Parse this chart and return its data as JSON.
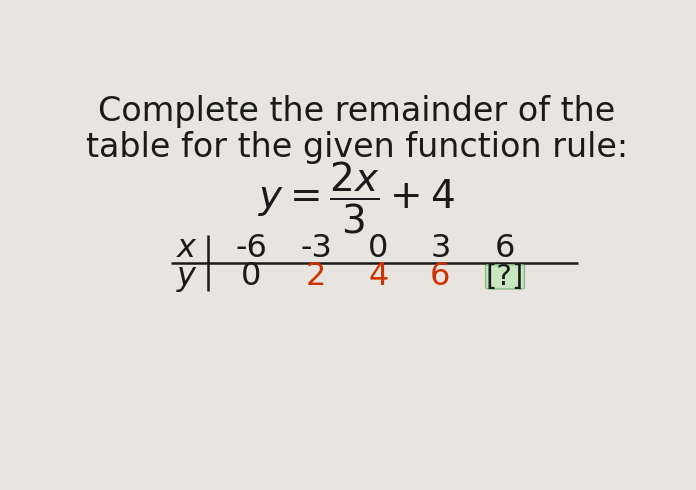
{
  "title_line1": "Complete the remainder of the",
  "title_line2": "table for the given function rule:",
  "x_label": "x",
  "y_label": "y",
  "x_values": [
    "-6",
    "-3",
    "0",
    "3",
    "6"
  ],
  "y_values": [
    "0",
    "2",
    "4",
    "6",
    "[?]"
  ],
  "y_colors": [
    "#1a1a1a",
    "#cc3300",
    "#cc3300",
    "#cc3300",
    "#1a1a1a"
  ],
  "answer_box_color": "#c8e6c0",
  "answer_box_edge_color": "#88bb88",
  "answer_text_color": "#1a1a1a",
  "bg_color": "#e8e4e0",
  "title_fontsize": 24,
  "formula_fontsize": 22,
  "table_fontsize": 22,
  "x_positions": [
    3.05,
    4.25,
    5.4,
    6.55,
    7.75
  ]
}
